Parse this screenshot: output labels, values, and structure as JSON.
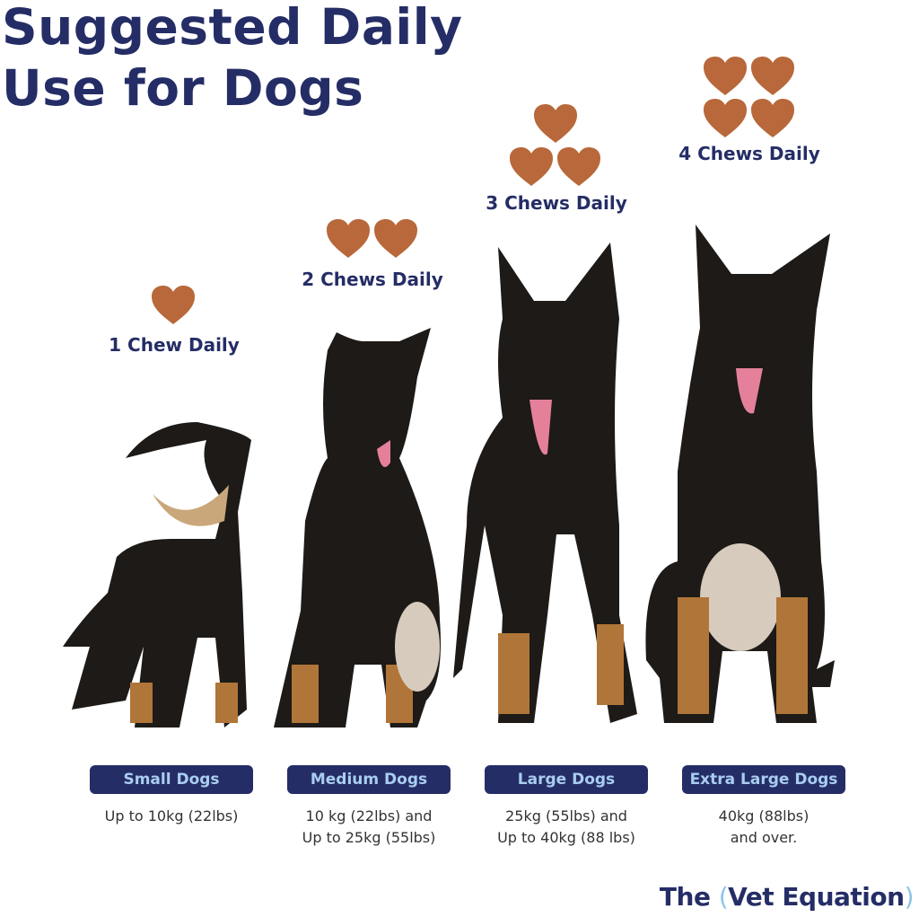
{
  "title_line1": "Suggested Daily",
  "title_line2": "Use for Dogs",
  "colors": {
    "navy": "#252d66",
    "badge_text": "#a9cdf0",
    "chew": "#b8683a",
    "logo_paren": "#8cc4ea"
  },
  "tiers": [
    {
      "chews": 1,
      "label": "1 Chew Daily",
      "size": "Small Dogs",
      "range_line1": "Up to 10kg (22lbs)",
      "range_line2": ""
    },
    {
      "chews": 2,
      "label": "2 Chews Daily",
      "size": "Medium Dogs",
      "range_line1": "10 kg (22lbs) and",
      "range_line2": "Up to 25kg (55lbs)"
    },
    {
      "chews": 3,
      "label": "3 Chews Daily",
      "size": "Large Dogs",
      "range_line1": "25kg (55lbs) and",
      "range_line2": "Up to 40kg (88 lbs)"
    },
    {
      "chews": 4,
      "label": "4 Chews Daily",
      "size": "Extra Large Dogs",
      "range_line1": "40kg (88lbs)",
      "range_line2": "and over."
    }
  ],
  "logo": {
    "the": "The",
    "open": "(",
    "name": "Vet Equation",
    "close": ")"
  }
}
